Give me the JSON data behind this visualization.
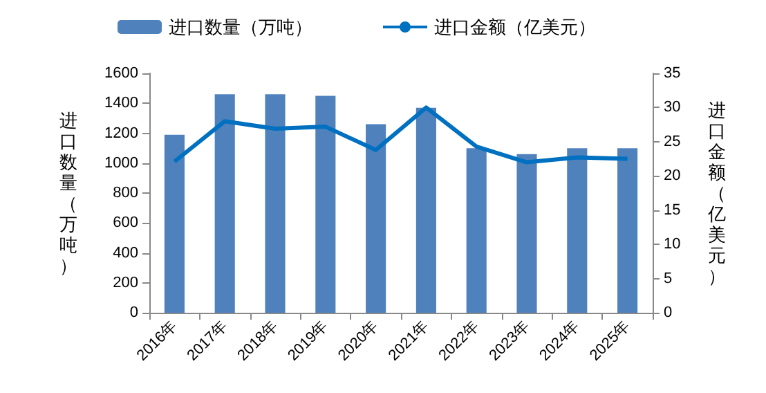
{
  "chart_data": {
    "type": "bar",
    "categories": [
      "2016年",
      "2017年",
      "2018年",
      "2019年",
      "2020年",
      "2021年",
      "2022年",
      "2023年",
      "2024年",
      "2025年"
    ],
    "series": [
      {
        "name": "进口数量（万吨）",
        "color": "#4f81bd",
        "values": [
          1190,
          1460,
          1460,
          1450,
          1260,
          1370,
          1100,
          1060,
          1100,
          1100
        ]
      },
      {
        "name": "进口金额（亿美元）",
        "type": "line",
        "axis": "y2",
        "color": "#0070c0",
        "values": [
          22.1,
          28.0,
          26.9,
          27.2,
          23.8,
          30.0,
          24.3,
          22.0,
          22.7,
          22.5
        ]
      }
    ],
    "ylabel": "进口数量（万吨）",
    "y2label": "进口金额（亿美元）",
    "ylim": [
      0,
      1600
    ],
    "yticks": [
      0,
      200,
      400,
      600,
      800,
      1000,
      1200,
      1400,
      1600
    ],
    "y2lim": [
      0,
      35
    ],
    "y2ticks": [
      0,
      5,
      10,
      15,
      20,
      25,
      30,
      35
    ],
    "legend": "top",
    "grid": false,
    "marker": "none",
    "line_style": "solid"
  }
}
